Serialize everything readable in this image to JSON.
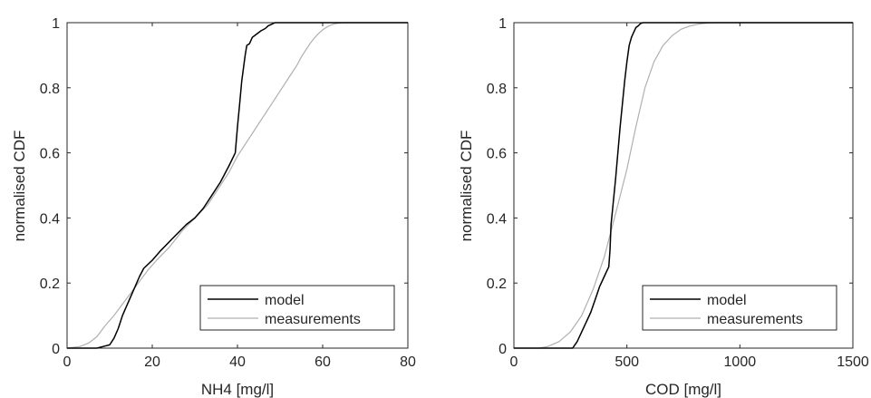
{
  "chart_data": [
    {
      "type": "line",
      "xlabel": "NH4 [mg/l]",
      "ylabel": "normalised CDF",
      "xlim": [
        0,
        80
      ],
      "ylim": [
        0,
        1
      ],
      "xticks": [
        0,
        20,
        40,
        60,
        80
      ],
      "yticks": [
        0,
        0.2,
        0.4,
        0.6,
        0.8,
        1
      ],
      "xtick_labels": [
        "0",
        "20",
        "40",
        "60",
        "80"
      ],
      "ytick_labels": [
        "0",
        "0.2",
        "0.4",
        "0.6",
        "0.8",
        "1"
      ],
      "grid": false,
      "legend_position": "bottom-right",
      "series": [
        {
          "name": "model",
          "color": "#000000",
          "x": [
            0,
            7,
            8.5,
            10,
            11,
            12,
            13,
            14,
            15,
            16,
            17,
            18,
            20,
            22,
            25,
            28,
            30,
            32,
            34,
            36,
            38,
            39.5,
            40,
            40.5,
            41,
            41.8,
            42.2,
            42.8,
            43.5,
            44.5,
            45.5,
            46.5,
            47.2,
            48,
            48.8,
            80
          ],
          "y": [
            0,
            0,
            0.005,
            0.01,
            0.03,
            0.06,
            0.1,
            0.13,
            0.16,
            0.19,
            0.22,
            0.245,
            0.27,
            0.3,
            0.34,
            0.38,
            0.4,
            0.43,
            0.47,
            0.51,
            0.56,
            0.6,
            0.68,
            0.75,
            0.82,
            0.9,
            0.93,
            0.935,
            0.955,
            0.965,
            0.975,
            0.982,
            0.99,
            0.995,
            1.0,
            1.0
          ]
        },
        {
          "name": "measurements",
          "color": "#b0b0b0",
          "x": [
            0,
            3,
            5,
            7,
            9,
            11,
            13,
            15,
            17,
            19,
            21,
            24,
            27,
            30,
            33,
            36,
            38,
            40,
            42,
            44,
            46,
            48,
            50,
            52,
            54,
            55,
            56,
            57,
            58,
            59,
            60,
            61,
            62,
            63,
            64,
            65,
            80
          ],
          "y": [
            0,
            0.005,
            0.015,
            0.035,
            0.07,
            0.1,
            0.135,
            0.17,
            0.205,
            0.24,
            0.27,
            0.31,
            0.36,
            0.4,
            0.44,
            0.5,
            0.54,
            0.59,
            0.63,
            0.67,
            0.71,
            0.75,
            0.79,
            0.83,
            0.87,
            0.895,
            0.915,
            0.935,
            0.952,
            0.966,
            0.978,
            0.987,
            0.993,
            0.997,
            0.999,
            1.0,
            1.0
          ]
        }
      ]
    },
    {
      "type": "line",
      "xlabel": "COD [mg/l]",
      "ylabel": "normalised CDF",
      "xlim": [
        0,
        1500
      ],
      "ylim": [
        0,
        1
      ],
      "xticks": [
        0,
        500,
        1000,
        1500
      ],
      "yticks": [
        0,
        0.2,
        0.4,
        0.6,
        0.8,
        1
      ],
      "xtick_labels": [
        "0",
        "500",
        "1000",
        "1500"
      ],
      "ytick_labels": [
        "0",
        "0.2",
        "0.4",
        "0.6",
        "0.8",
        "1"
      ],
      "grid": false,
      "legend_position": "bottom-right",
      "series": [
        {
          "name": "model",
          "color": "#000000",
          "x": [
            0,
            260,
            280,
            300,
            320,
            340,
            360,
            380,
            400,
            410,
            420,
            425,
            430,
            440,
            450,
            460,
            470,
            480,
            490,
            500,
            510,
            520,
            530,
            540,
            550,
            560,
            570,
            1500
          ],
          "y": [
            0,
            0,
            0.02,
            0.05,
            0.08,
            0.11,
            0.15,
            0.19,
            0.22,
            0.235,
            0.25,
            0.3,
            0.38,
            0.45,
            0.52,
            0.6,
            0.68,
            0.75,
            0.82,
            0.88,
            0.93,
            0.955,
            0.97,
            0.985,
            0.99,
            0.997,
            1.0,
            1.0
          ]
        },
        {
          "name": "measurements",
          "color": "#b0b0b0",
          "x": [
            0,
            110,
            150,
            200,
            250,
            300,
            350,
            400,
            430,
            460,
            500,
            540,
            580,
            620,
            660,
            700,
            740,
            780,
            820,
            860,
            900,
            1500
          ],
          "y": [
            0,
            0,
            0.005,
            0.02,
            0.05,
            0.1,
            0.18,
            0.28,
            0.36,
            0.44,
            0.55,
            0.68,
            0.8,
            0.88,
            0.93,
            0.96,
            0.98,
            0.99,
            0.996,
            0.999,
            1.0,
            1.0
          ]
        }
      ]
    }
  ]
}
